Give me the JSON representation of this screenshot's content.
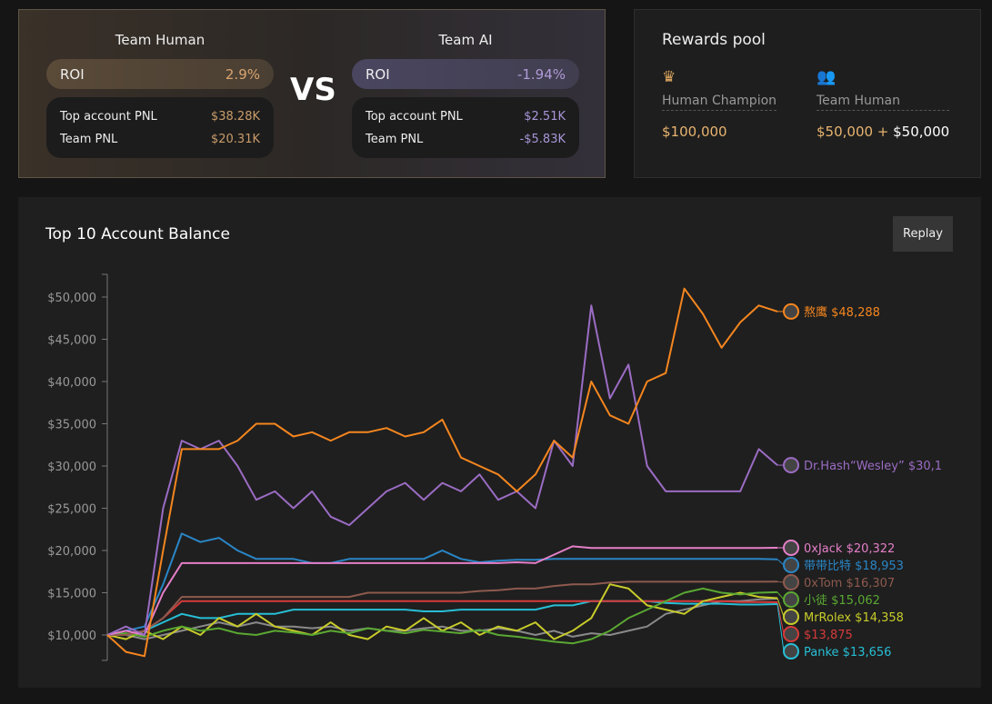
{
  "vs": {
    "label": "VS",
    "human": {
      "title": "Team Human",
      "roi_label": "ROI",
      "roi": "2.9%",
      "top_label": "Top account PNL",
      "top": "$38.28K",
      "team_label": "Team PNL",
      "team": "$20.31K"
    },
    "ai": {
      "title": "Team AI",
      "roi_label": "ROI",
      "roi": "-1.94%",
      "top_label": "Top account PNL",
      "top": "$2.51K",
      "team_label": "Team PNL",
      "team": "-$5.83K"
    }
  },
  "rewards": {
    "title": "Rewards pool",
    "champion": {
      "icon": "crown-icon",
      "label": "Human Champion",
      "value": "$100,000"
    },
    "team": {
      "icon": "team-icon",
      "label": "Team Human",
      "value_a": "$50,000",
      "plus": " + ",
      "value_b": "$50,000"
    }
  },
  "chart": {
    "title": "Top 10 Account Balance",
    "replay": "Replay"
  },
  "chart_data": {
    "type": "line",
    "title": "Top 10 Account Balance",
    "ylim": [
      7000,
      53000
    ],
    "yticks": [
      10000,
      15000,
      20000,
      25000,
      30000,
      35000,
      40000,
      45000,
      50000
    ],
    "ytick_labels": [
      "$10,000",
      "$15,000",
      "$20,000",
      "$25,000",
      "$30,000",
      "$35,000",
      "$40,000",
      "$45,000",
      "$50,000"
    ],
    "series": [
      {
        "name": "熬鹰",
        "label": "熬鹰 $48,288",
        "color": "#f5861f",
        "values": [
          10000,
          8000,
          7500,
          20000,
          32000,
          32000,
          32000,
          33000,
          35000,
          35000,
          33500,
          34000,
          33000,
          34000,
          34000,
          34500,
          33500,
          34000,
          35500,
          31000,
          30000,
          29000,
          27000,
          29000,
          33000,
          31000,
          40000,
          36000,
          35000,
          40000,
          41000,
          51000,
          48000,
          44000,
          47000,
          49000,
          48288
        ]
      },
      {
        "name": "Dr.Hash“Wesley”",
        "label": "Dr.Hash“Wesley” $30,1",
        "color": "#9b6cc4",
        "values": [
          10000,
          11000,
          10000,
          25000,
          33000,
          32000,
          33000,
          30000,
          26000,
          27000,
          25000,
          27000,
          24000,
          23000,
          25000,
          27000,
          28000,
          26000,
          28000,
          27000,
          29000,
          26000,
          27000,
          25000,
          33000,
          30000,
          49000,
          38000,
          42000,
          30000,
          27000,
          27000,
          27000,
          27000,
          27000,
          32000,
          30100
        ]
      },
      {
        "name": "0xJack",
        "label": "0xJack $20,322",
        "color": "#e57fc8",
        "values": [
          10000,
          10500,
          10000,
          15000,
          18500,
          18500,
          18500,
          18500,
          18500,
          18500,
          18500,
          18500,
          18500,
          18500,
          18500,
          18500,
          18500,
          18500,
          18500,
          18500,
          18500,
          18500,
          18600,
          18500,
          19500,
          20500,
          20300,
          20300,
          20300,
          20300,
          20300,
          20300,
          20300,
          20300,
          20300,
          20300,
          20322
        ]
      },
      {
        "name": "带带比特",
        "label": "带带比特 $18,953",
        "color": "#2a86c6",
        "values": [
          10000,
          10500,
          11000,
          16000,
          22000,
          21000,
          21500,
          20000,
          19000,
          19000,
          19000,
          18500,
          18500,
          19000,
          19000,
          19000,
          19000,
          19000,
          20000,
          19000,
          18600,
          18800,
          18900,
          18900,
          19000,
          19000,
          19000,
          19000,
          19000,
          19000,
          19000,
          19000,
          19000,
          19000,
          19000,
          19000,
          18953
        ]
      },
      {
        "name": "0xTom",
        "label": "0xTom $16,307",
        "color": "#8e5a4e",
        "values": [
          10000,
          10000,
          10500,
          12000,
          14500,
          14500,
          14500,
          14500,
          14500,
          14500,
          14500,
          14500,
          14500,
          14500,
          15000,
          15000,
          15000,
          15000,
          15000,
          15000,
          15200,
          15300,
          15500,
          15500,
          15800,
          16000,
          16000,
          16200,
          16300,
          16300,
          16300,
          16300,
          16300,
          16300,
          16300,
          16300,
          16307
        ]
      },
      {
        "name": "小徒",
        "label": "小徒 $15,062",
        "color": "#5aa832",
        "values": [
          10000,
          10200,
          9800,
          10500,
          11000,
          10500,
          10800,
          10200,
          10000,
          10500,
          10300,
          10000,
          10500,
          10200,
          10800,
          10500,
          10200,
          10600,
          10400,
          10200,
          10600,
          10000,
          9800,
          9500,
          9200,
          9000,
          9500,
          10500,
          12000,
          13000,
          14000,
          15000,
          15500,
          15000,
          14800,
          15000,
          15062
        ]
      },
      {
        "name": "MrRolex",
        "label": "MrRolex $14,358",
        "color": "#c8cc2a",
        "values": [
          10000,
          9500,
          10500,
          9500,
          11000,
          10000,
          12000,
          11000,
          12500,
          11000,
          10500,
          10000,
          11500,
          10000,
          9500,
          11000,
          10500,
          12000,
          10500,
          11500,
          10000,
          11000,
          10500,
          11500,
          9500,
          10500,
          12000,
          16000,
          15500,
          13500,
          13000,
          12500,
          14000,
          14500,
          15000,
          14500,
          14358
        ]
      },
      {
        "name": "",
        "label": "$13,875",
        "color": "#d63a3a",
        "values": [
          10000,
          10000,
          10500,
          12000,
          14000,
          14000,
          14000,
          14000,
          14000,
          14000,
          14000,
          14000,
          14000,
          14000,
          14000,
          14000,
          14000,
          14000,
          14000,
          14000,
          14000,
          14000,
          14000,
          14000,
          14000,
          14000,
          14000,
          14000,
          14000,
          14000,
          14000,
          14000,
          14000,
          14000,
          13900,
          13900,
          13875
        ]
      },
      {
        "name": "Panke",
        "label": "Panke $13,656",
        "color": "#27bfd6",
        "values": [
          10000,
          10000,
          10500,
          11500,
          12500,
          12000,
          12000,
          12500,
          12500,
          12500,
          13000,
          13000,
          13000,
          13000,
          13000,
          13000,
          13000,
          12800,
          12800,
          13000,
          13000,
          13000,
          13000,
          13000,
          13500,
          13500,
          14000,
          14000,
          14000,
          14000,
          13800,
          13700,
          13700,
          13700,
          13600,
          13600,
          13656
        ]
      },
      {
        "name": "",
        "label": "",
        "color": "#8a8a8a",
        "values": [
          10000,
          10000,
          9500,
          10000,
          10500,
          11000,
          11500,
          11000,
          11500,
          11000,
          11000,
          10800,
          11000,
          10500,
          10800,
          10500,
          10500,
          10800,
          11000,
          10500,
          10500,
          10800,
          10500,
          10000,
          10500,
          9800,
          10200,
          10000,
          10500,
          11000,
          12500,
          13000,
          13500,
          14000,
          14000,
          14200,
          14300
        ]
      }
    ]
  }
}
